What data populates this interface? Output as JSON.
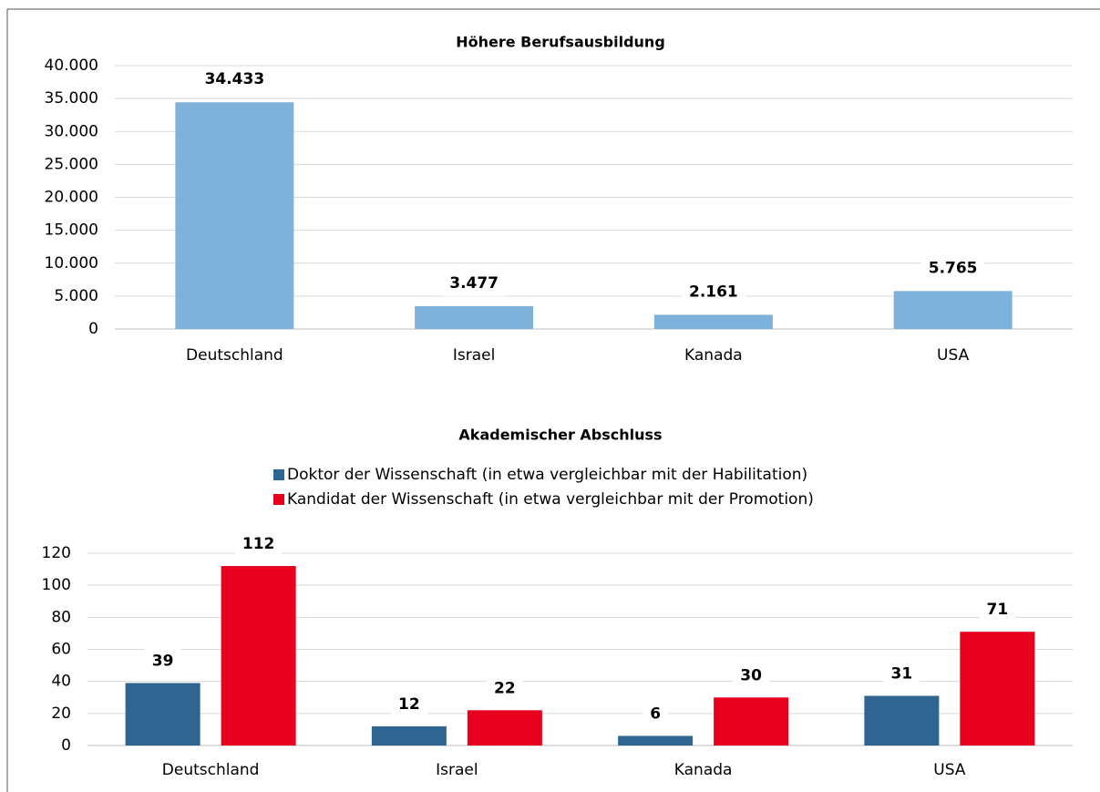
{
  "chart_data": [
    {
      "type": "bar",
      "title": "Höhere Berufsausbildung",
      "categories": [
        "Deutschland",
        "Israel",
        "Kanada",
        "USA"
      ],
      "values": [
        34433,
        3477,
        2161,
        5765
      ],
      "value_labels": [
        "34.433",
        "3.477",
        "2.161",
        "5.765"
      ],
      "color": "#7fb2da",
      "ylim": [
        0,
        40000
      ],
      "yticks": [
        0,
        {
          "value": 5000,
          "label": "5.000"
        },
        {
          "value": 10000,
          "label": "10.000"
        },
        {
          "value": 15000,
          "label": "15.000"
        },
        {
          "value": 20000,
          "label": "20.000"
        },
        {
          "value": 25000,
          "label": "25.000"
        },
        {
          "value": 30000,
          "label": "30.000"
        },
        {
          "value": 35000,
          "label": "35.000"
        },
        {
          "value": 40000,
          "label": "40.000"
        }
      ],
      "grid": true
    },
    {
      "type": "bar",
      "title": "Akademischer Abschluss",
      "categories": [
        "Deutschland",
        "Israel",
        "Kanada",
        "USA"
      ],
      "series": [
        {
          "name": "Doktor der Wissenschaft (in etwa vergleichbar mit der Habilitation)",
          "color": "#2e6591",
          "values": [
            39,
            12,
            6,
            31
          ]
        },
        {
          "name": "Kandidat der Wissenschaft (in etwa vergleichbar mit der Promotion)",
          "color": "#e8001f",
          "values": [
            112,
            22,
            30,
            71
          ]
        }
      ],
      "ylim": [
        0,
        120
      ],
      "yticks": [
        0,
        20,
        40,
        60,
        80,
        100,
        120
      ],
      "grid": true,
      "legend": "top"
    }
  ]
}
